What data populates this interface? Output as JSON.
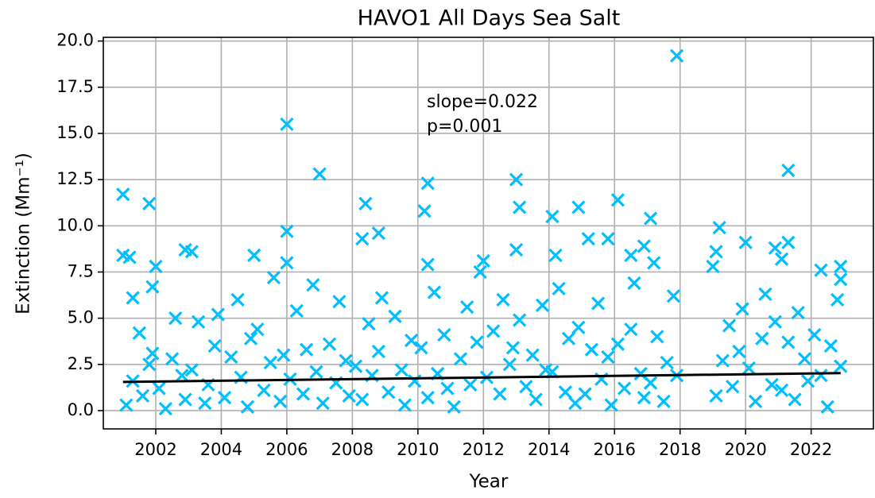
{
  "chart_data": {
    "type": "scatter",
    "title": "HAVO1 All Days Sea Salt",
    "x_label": "Year",
    "y_label": "Extinction (Mm⁻¹)",
    "annotations": [
      "slope=0.022",
      "p=0.001"
    ],
    "xlim": [
      2000.4,
      2023.9
    ],
    "ylim": [
      -0.99,
      20.2
    ],
    "xticks": [
      2002,
      2004,
      2006,
      2008,
      2010,
      2012,
      2014,
      2016,
      2018,
      2020,
      2022
    ],
    "yticks": [
      {
        "value": 0,
        "label": "0.0"
      },
      2.5,
      {
        "value": 5,
        "label": "5.0"
      },
      7.5,
      {
        "value": 10,
        "label": "10.0"
      },
      12.5,
      {
        "value": 15,
        "label": "15.0"
      },
      17.5,
      {
        "value": 20,
        "label": "20.0"
      }
    ],
    "grid": true,
    "series": [
      {
        "color": "#00bfff",
        "marker": "x",
        "x": [
          2001.0,
          2001.0,
          2001.2,
          2001.3,
          2001.8,
          2001.9,
          2002.0,
          2002.9,
          2003.1,
          2005.0,
          2006.0,
          2006.0,
          2006.0,
          2007.0,
          2008.3,
          2008.4,
          2008.8,
          2010.2,
          2010.3,
          2010.3,
          2012.0,
          2013.0,
          2013.1,
          2013.0,
          2014.1,
          2014.2,
          2014.9,
          2015.2,
          2015.8,
          2016.1,
          2016.5,
          2016.9,
          2017.1,
          2017.2,
          2017.9,
          2019.0,
          2019.1,
          2019.2,
          2020.0,
          2020.9,
          2021.1,
          2021.3,
          2021.3,
          2022.3,
          2022.9,
          2022.9,
          2001.1,
          2001.3,
          2001.5,
          2001.6,
          2001.8,
          2001.9,
          2002.1,
          2002.3,
          2002.5,
          2002.6,
          2002.8,
          2002.9,
          2003.1,
          2003.3,
          2003.5,
          2003.6,
          2003.8,
          2003.9,
          2004.1,
          2004.3,
          2004.5,
          2004.6,
          2004.8,
          2004.9,
          2005.1,
          2005.3,
          2005.5,
          2005.6,
          2005.8,
          2005.9,
          2006.1,
          2006.3,
          2006.5,
          2006.6,
          2006.8,
          2006.9,
          2007.1,
          2007.3,
          2007.5,
          2007.6,
          2007.8,
          2007.9,
          2008.1,
          2008.3,
          2008.5,
          2008.6,
          2008.8,
          2008.9,
          2009.1,
          2009.3,
          2009.5,
          2009.6,
          2009.8,
          2009.9,
          2010.1,
          2010.3,
          2010.5,
          2010.6,
          2010.8,
          2010.9,
          2011.1,
          2011.3,
          2011.5,
          2011.6,
          2011.8,
          2011.9,
          2012.1,
          2012.3,
          2012.5,
          2012.6,
          2012.8,
          2012.9,
          2013.1,
          2013.3,
          2013.5,
          2013.6,
          2013.8,
          2013.9,
          2014.1,
          2014.3,
          2014.5,
          2014.6,
          2014.8,
          2014.9,
          2015.1,
          2015.3,
          2015.5,
          2015.6,
          2015.8,
          2015.9,
          2016.1,
          2016.3,
          2016.5,
          2016.6,
          2016.8,
          2016.9,
          2017.1,
          2017.3,
          2017.5,
          2017.6,
          2017.8,
          2017.9,
          2019.1,
          2019.3,
          2019.5,
          2019.6,
          2019.8,
          2019.9,
          2020.1,
          2020.3,
          2020.5,
          2020.6,
          2020.8,
          2020.9,
          2021.1,
          2021.3,
          2021.5,
          2021.6,
          2021.8,
          2021.9,
          2022.1,
          2022.3,
          2022.5,
          2022.6,
          2022.8,
          2022.9
        ],
        "values": [
          11.7,
          8.4,
          8.3,
          6.1,
          11.2,
          6.7,
          7.8,
          8.7,
          8.6,
          8.4,
          15.5,
          9.7,
          8.0,
          12.8,
          9.3,
          11.2,
          9.6,
          10.8,
          12.3,
          7.9,
          8.1,
          12.5,
          11.0,
          8.7,
          10.5,
          8.4,
          11.0,
          9.3,
          9.3,
          11.4,
          8.4,
          8.9,
          10.4,
          8.0,
          19.2,
          7.8,
          8.6,
          9.9,
          9.1,
          8.8,
          8.2,
          13.0,
          9.1,
          7.6,
          7.8,
          7.1,
          0.3,
          1.6,
          4.2,
          0.8,
          2.5,
          3.1,
          1.2,
          0.1,
          2.8,
          5.0,
          1.9,
          0.6,
          2.2,
          4.8,
          0.4,
          1.4,
          3.5,
          5.2,
          0.7,
          2.9,
          6.0,
          1.8,
          0.2,
          3.9,
          4.4,
          1.1,
          2.6,
          7.2,
          0.5,
          3.0,
          1.7,
          5.4,
          0.9,
          3.3,
          6.8,
          2.1,
          0.4,
          3.6,
          1.5,
          5.9,
          2.7,
          0.8,
          2.4,
          0.6,
          4.7,
          1.9,
          3.2,
          6.1,
          1.0,
          5.1,
          2.2,
          0.3,
          3.8,
          1.6,
          3.4,
          0.7,
          6.4,
          2.0,
          4.1,
          1.2,
          0.2,
          2.8,
          5.6,
          1.4,
          3.7,
          7.5,
          1.8,
          4.3,
          0.9,
          6.0,
          2.5,
          3.4,
          4.9,
          1.3,
          3.0,
          0.6,
          5.7,
          2.2,
          2.1,
          6.6,
          1.0,
          3.9,
          0.4,
          4.5,
          0.9,
          3.3,
          5.8,
          1.7,
          2.9,
          0.3,
          3.6,
          1.2,
          4.4,
          6.9,
          2.0,
          0.7,
          1.5,
          4.0,
          0.5,
          2.6,
          6.2,
          1.9,
          0.8,
          2.7,
          4.6,
          1.3,
          3.2,
          5.5,
          2.3,
          0.5,
          3.9,
          6.3,
          1.4,
          4.8,
          1.1,
          3.7,
          0.6,
          5.3,
          2.8,
          1.6,
          4.1,
          1.9,
          0.2,
          3.5,
          6.0,
          2.4
        ]
      },
      {
        "color": "#000000",
        "marker": "line",
        "x": [
          2001.0,
          2022.9
        ],
        "values": [
          1.55,
          2.03
        ]
      }
    ]
  }
}
